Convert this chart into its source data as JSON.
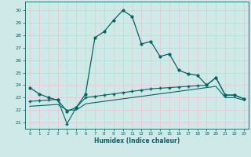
{
  "xlabel": "Humidex (Indice chaleur)",
  "bg_color": "#cfe8e8",
  "grid_color": "#b0d4d4",
  "line_color": "#006666",
  "xlim": [
    -0.5,
    23.5
  ],
  "ylim": [
    20.5,
    30.7
  ],
  "xticks": [
    0,
    1,
    2,
    3,
    4,
    5,
    6,
    7,
    8,
    9,
    10,
    11,
    12,
    13,
    14,
    15,
    16,
    17,
    18,
    19,
    20,
    21,
    22,
    23
  ],
  "yticks": [
    21,
    22,
    23,
    24,
    25,
    26,
    27,
    28,
    29,
    30
  ],
  "line1_x": [
    0,
    1,
    2,
    3,
    4,
    5,
    6,
    7,
    8,
    9,
    10,
    11,
    12,
    13,
    14,
    15,
    16,
    17,
    18,
    19,
    20,
    21,
    22,
    23
  ],
  "line1_y": [
    23.8,
    23.3,
    23.0,
    22.8,
    21.9,
    22.2,
    23.3,
    27.8,
    28.3,
    29.2,
    30.0,
    29.5,
    27.3,
    27.5,
    26.3,
    26.5,
    25.2,
    24.9,
    24.8,
    24.0,
    24.6,
    23.2,
    23.2,
    22.9
  ],
  "line2_x": [
    0,
    1,
    2,
    3,
    4,
    5,
    6,
    7,
    8,
    9,
    10,
    11,
    12,
    13,
    14,
    15,
    16,
    17,
    18,
    19,
    20,
    21,
    22,
    23
  ],
  "line2_y": [
    22.7,
    22.75,
    22.8,
    22.85,
    20.9,
    22.2,
    23.0,
    23.1,
    23.2,
    23.3,
    23.4,
    23.5,
    23.6,
    23.7,
    23.75,
    23.8,
    23.85,
    23.9,
    23.95,
    24.0,
    24.6,
    23.2,
    23.2,
    22.9
  ],
  "line3_x": [
    0,
    1,
    2,
    3,
    4,
    5,
    6,
    7,
    8,
    9,
    10,
    11,
    12,
    13,
    14,
    15,
    16,
    17,
    18,
    19,
    20,
    21,
    22,
    23
  ],
  "line3_y": [
    22.3,
    22.35,
    22.4,
    22.45,
    22.0,
    22.0,
    22.5,
    22.6,
    22.7,
    22.8,
    22.9,
    23.0,
    23.1,
    23.2,
    23.3,
    23.4,
    23.5,
    23.6,
    23.7,
    23.8,
    23.9,
    23.0,
    23.0,
    22.8
  ]
}
